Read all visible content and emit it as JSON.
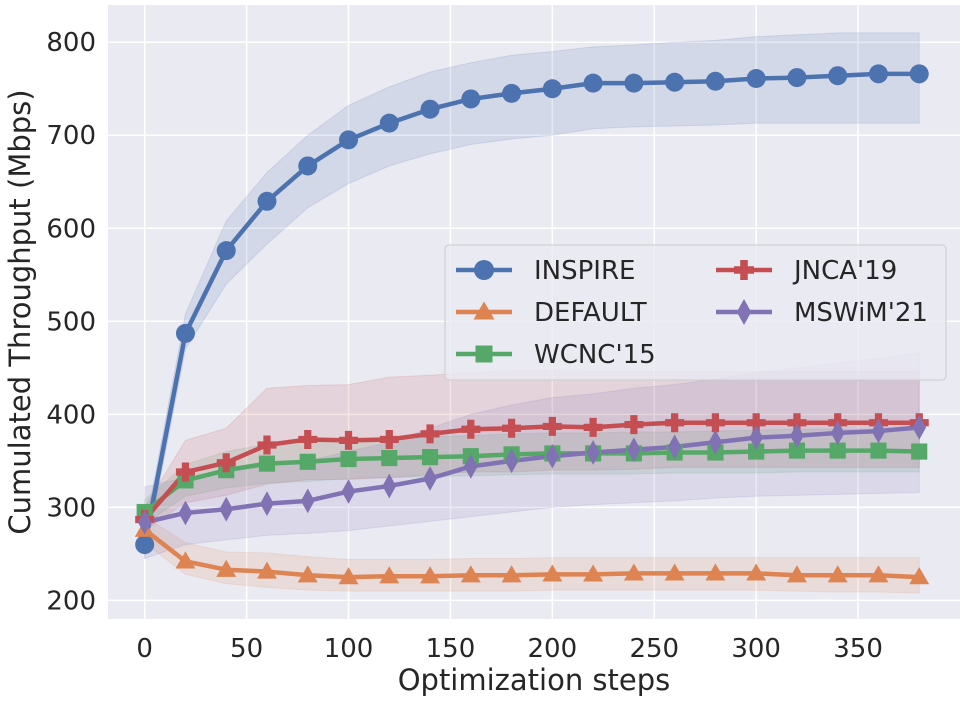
{
  "chart_data": {
    "type": "line",
    "title": "",
    "xlabel": "Optimization steps",
    "ylabel": "Cumulated Throughput (Mbps)",
    "xlim": [
      -18,
      400
    ],
    "ylim": [
      180,
      840
    ],
    "xticks": [
      0,
      50,
      100,
      150,
      200,
      250,
      300,
      350
    ],
    "yticks": [
      200,
      300,
      400,
      500,
      600,
      700,
      800
    ],
    "xtick_labels": [
      "0",
      "50",
      "100",
      "150",
      "200",
      "250",
      "300",
      "350"
    ],
    "ytick_labels": [
      "200",
      "300",
      "400",
      "500",
      "600",
      "700",
      "800"
    ],
    "grid": true,
    "legend_position": "center-right",
    "x": [
      0,
      20,
      40,
      60,
      80,
      100,
      120,
      140,
      160,
      180,
      200,
      220,
      240,
      260,
      280,
      300,
      320,
      340,
      360,
      380
    ],
    "series": [
      {
        "name": "INSPIRE",
        "color": "#4c72b0",
        "marker": "circle",
        "values": [
          260,
          487,
          576,
          629,
          667,
          695,
          713,
          728,
          739,
          745,
          750,
          756,
          756,
          757,
          758,
          761,
          762,
          764,
          766,
          766
        ],
        "lower": [
          245,
          470,
          540,
          583,
          622,
          648,
          667,
          680,
          690,
          696,
          700,
          707,
          709,
          710,
          711,
          713,
          713,
          713,
          713,
          713
        ],
        "upper": [
          275,
          508,
          608,
          660,
          700,
          732,
          752,
          768,
          778,
          786,
          790,
          795,
          797,
          800,
          802,
          806,
          808,
          810,
          810,
          810
        ]
      },
      {
        "name": "DEFAULT",
        "color": "#dd8452",
        "marker": "triangle",
        "values": [
          276,
          242,
          233,
          231,
          227,
          225,
          226,
          226,
          227,
          227,
          228,
          228,
          229,
          229,
          229,
          229,
          227,
          227,
          227,
          225
        ],
        "lower": [
          262,
          228,
          218,
          214,
          211,
          210,
          210,
          210,
          210,
          210,
          211,
          211,
          211,
          211,
          211,
          211,
          210,
          209,
          209,
          208
        ],
        "upper": [
          290,
          262,
          252,
          251,
          247,
          244,
          244,
          244,
          245,
          245,
          246,
          246,
          246,
          246,
          246,
          246,
          246,
          246,
          246,
          246
        ]
      },
      {
        "name": "WCNC'15",
        "color": "#55a868",
        "marker": "square",
        "values": [
          295,
          329,
          340,
          347,
          349,
          352,
          353,
          354,
          355,
          357,
          358,
          358,
          358,
          359,
          359,
          360,
          361,
          361,
          361,
          360
        ],
        "lower": [
          282,
          312,
          321,
          326,
          328,
          331,
          332,
          333,
          334,
          335,
          336,
          336,
          336,
          337,
          337,
          337,
          338,
          338,
          338,
          338
        ],
        "upper": [
          308,
          346,
          360,
          368,
          371,
          374,
          375,
          376,
          377,
          379,
          380,
          380,
          381,
          381,
          382,
          383,
          384,
          384,
          384,
          383
        ]
      },
      {
        "name": "JNCA'19",
        "color": "#c44e52",
        "marker": "plus",
        "values": [
          287,
          338,
          348,
          367,
          373,
          372,
          373,
          379,
          384,
          385,
          387,
          386,
          389,
          391,
          391,
          391,
          391,
          391,
          391,
          391
        ],
        "lower": [
          275,
          305,
          313,
          325,
          330,
          330,
          332,
          335,
          338,
          338,
          340,
          340,
          341,
          343,
          343,
          343,
          343,
          343,
          343,
          343
        ],
        "upper": [
          300,
          372,
          385,
          428,
          431,
          432,
          440,
          442,
          445,
          447,
          447,
          446,
          446,
          446,
          446,
          446,
          446,
          446,
          446,
          446
        ]
      },
      {
        "name": "MSWiM'21",
        "color": "#8172b3",
        "marker": "diamond",
        "values": [
          284,
          294,
          298,
          304,
          307,
          317,
          323,
          331,
          344,
          350,
          355,
          359,
          362,
          365,
          370,
          375,
          377,
          380,
          382,
          386
        ],
        "lower": [
          245,
          260,
          265,
          270,
          272,
          275,
          280,
          285,
          290,
          295,
          300,
          303,
          305,
          307,
          310,
          312,
          313,
          314,
          315,
          316
        ],
        "upper": [
          322,
          332,
          338,
          345,
          350,
          360,
          370,
          385,
          400,
          410,
          418,
          422,
          428,
          432,
          438,
          445,
          450,
          455,
          460,
          466
        ]
      }
    ],
    "legend": [
      {
        "name": "INSPIRE",
        "color": "#4c72b0",
        "marker": "circle"
      },
      {
        "name": "JNCA'19",
        "color": "#c44e52",
        "marker": "plus"
      },
      {
        "name": "DEFAULT",
        "color": "#dd8452",
        "marker": "triangle"
      },
      {
        "name": "MSWiM'21",
        "color": "#8172b3",
        "marker": "diamond"
      },
      {
        "name": "WCNC'15",
        "color": "#55a868",
        "marker": "square"
      }
    ]
  }
}
